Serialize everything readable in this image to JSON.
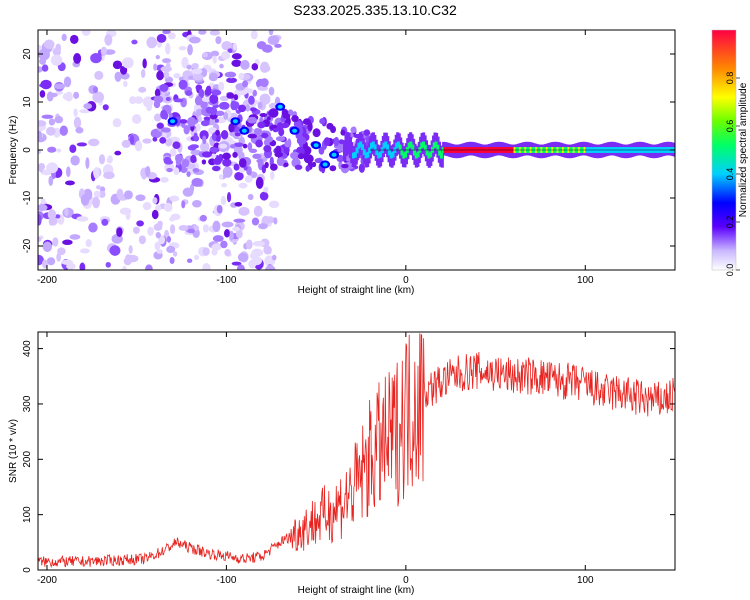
{
  "title": "S233.2025.335.13.10.C32",
  "chart_data": [
    {
      "type": "heatmap",
      "name": "spectrogram",
      "xlabel": "Height of straight line (km)",
      "ylabel": "Frequency (Hz)",
      "xlim": [
        -205,
        150
      ],
      "ylim": [
        -25,
        25
      ],
      "xticks": [
        -200,
        -100,
        0,
        100
      ],
      "yticks": [
        -20,
        -10,
        0,
        10,
        20
      ],
      "colorbar": {
        "label": "Normalized spectral amplitude",
        "range": [
          0,
          1
        ],
        "ticks": [
          0.0,
          0.2,
          0.4,
          0.6,
          0.8
        ]
      },
      "description_track": [
        {
          "x": -130,
          "y": 6
        },
        {
          "x": -100,
          "y": 5
        },
        {
          "x": -70,
          "y": 3
        },
        {
          "x": -45,
          "y": 1
        },
        {
          "x": -20,
          "y": 0.5
        },
        {
          "x": 0,
          "y": 1
        },
        {
          "x": 20,
          "y": 0
        },
        {
          "x": 60,
          "y": 0
        },
        {
          "x": 100,
          "y": 0
        },
        {
          "x": 150,
          "y": 0
        }
      ]
    },
    {
      "type": "line",
      "name": "snr",
      "xlabel": "Height of straight line (km)",
      "ylabel": "SNR (10 * v/v)",
      "xlim": [
        -205,
        150
      ],
      "ylim": [
        0,
        430
      ],
      "xticks": [
        -200,
        -100,
        0,
        100
      ],
      "yticks": [
        0,
        100,
        200,
        300,
        400
      ],
      "color": "#e8231f",
      "series": [
        {
          "name": "SNR",
          "x": [
            -205,
            -180,
            -160,
            -145,
            -135,
            -128,
            -120,
            -110,
            -100,
            -90,
            -80,
            -70,
            -60,
            -50,
            -40,
            -30,
            -25,
            -20,
            -15,
            -10,
            -5,
            0,
            5,
            10,
            20,
            30,
            40,
            50,
            60,
            70,
            80,
            90,
            100,
            110,
            120,
            130,
            140,
            150
          ],
          "values": [
            15,
            15,
            18,
            20,
            35,
            50,
            40,
            30,
            25,
            20,
            25,
            50,
            70,
            90,
            110,
            140,
            170,
            200,
            220,
            230,
            250,
            290,
            310,
            320,
            340,
            355,
            360,
            355,
            350,
            350,
            345,
            340,
            335,
            320,
            320,
            310,
            305,
            315
          ]
        }
      ]
    }
  ]
}
